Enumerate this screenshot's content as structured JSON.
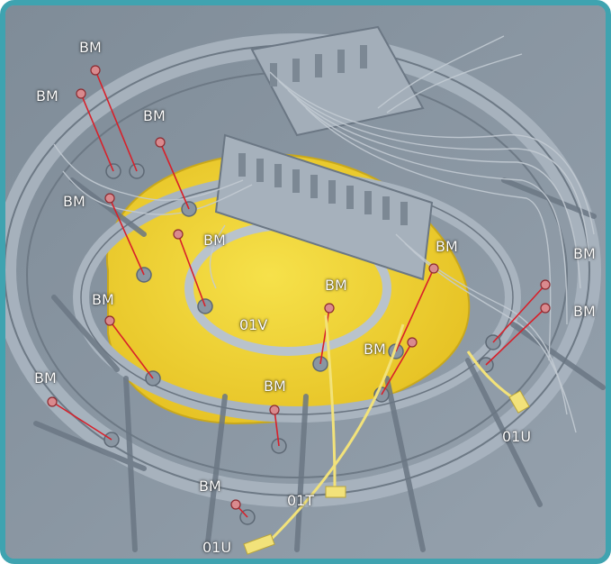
{
  "theme": {
    "frame_color": "#3fa3b0",
    "plastic_color": "#9aa6b2",
    "highlight_color": "#f0d23a",
    "fastener_line_color": "#d8202a",
    "connector_color": "#f2e27a"
  },
  "callouts": {
    "screw_code": "BM",
    "harness_codes": [
      "01V",
      "01T",
      "01U"
    ]
  },
  "labels": [
    {
      "id": "bm-1",
      "text": "BM",
      "kind": "screw"
    },
    {
      "id": "bm-2",
      "text": "BM",
      "kind": "screw"
    },
    {
      "id": "bm-3",
      "text": "BM",
      "kind": "screw"
    },
    {
      "id": "bm-4",
      "text": "BM",
      "kind": "screw"
    },
    {
      "id": "bm-5",
      "text": "BM",
      "kind": "screw"
    },
    {
      "id": "bm-6",
      "text": "BM",
      "kind": "screw"
    },
    {
      "id": "bm-7",
      "text": "BM",
      "kind": "screw"
    },
    {
      "id": "bm-8",
      "text": "BM",
      "kind": "screw"
    },
    {
      "id": "bm-9",
      "text": "BM",
      "kind": "screw"
    },
    {
      "id": "bm-10",
      "text": "BM",
      "kind": "screw"
    },
    {
      "id": "bm-11",
      "text": "BM",
      "kind": "screw"
    },
    {
      "id": "bm-12",
      "text": "BM",
      "kind": "screw"
    },
    {
      "id": "bm-13",
      "text": "BM",
      "kind": "screw"
    },
    {
      "id": "bm-14",
      "text": "BM",
      "kind": "screw"
    },
    {
      "id": "bm-15",
      "text": "BM",
      "kind": "screw"
    },
    {
      "id": "v-01",
      "text": "01V",
      "kind": "harness"
    },
    {
      "id": "t-01",
      "text": "01T",
      "kind": "harness"
    },
    {
      "id": "u-01a",
      "text": "01U",
      "kind": "harness"
    },
    {
      "id": "u-01b",
      "text": "01U",
      "kind": "harness"
    }
  ]
}
